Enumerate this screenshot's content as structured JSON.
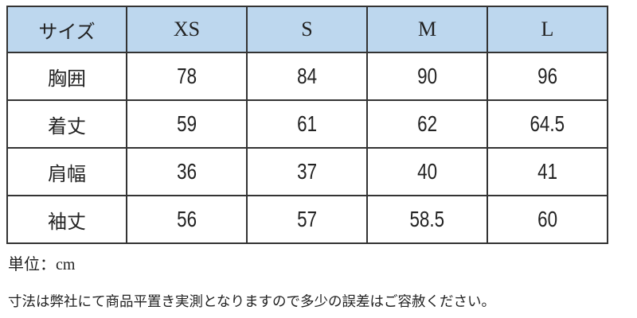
{
  "table": {
    "headers": [
      "サイズ",
      "XS",
      "S",
      "M",
      "L"
    ],
    "rows": [
      {
        "label": "胸囲",
        "values": [
          "78",
          "84",
          "90",
          "96"
        ]
      },
      {
        "label": "着丈",
        "values": [
          "59",
          "61",
          "62",
          "64.5"
        ]
      },
      {
        "label": "肩幅",
        "values": [
          "36",
          "37",
          "40",
          "41"
        ]
      },
      {
        "label": "袖丈",
        "values": [
          "56",
          "57",
          "58.5",
          "60"
        ]
      }
    ],
    "header_color": "#bdd7ee"
  },
  "unit": {
    "label": "単位：",
    "value": "cm"
  },
  "note": "寸法は弊社にて商品平置き実測となりますので多少の誤差はご容赦ください。"
}
